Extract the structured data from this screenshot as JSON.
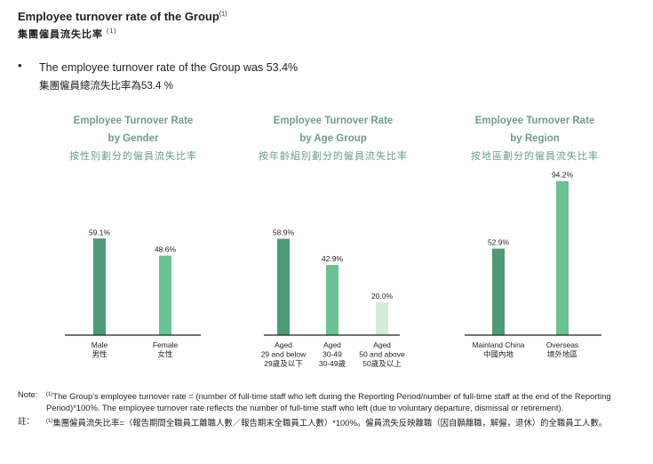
{
  "header": {
    "title_en": "Employee turnover rate of the Group",
    "title_zh": "集團僱員流失比率",
    "title_note": "(1)"
  },
  "bullet": {
    "symbol": "•",
    "text_en": "The employee turnover rate of the Group was 53.4%",
    "text_zh": "集團僱員總流失比率為53.4 %"
  },
  "colors": {
    "dark": "#4e9a76",
    "medium": "#6bc293",
    "light": "#d3ebdc",
    "title": "#6e9e86",
    "axis": "#231f20"
  },
  "chart_data": [
    {
      "type": "bar",
      "title_en_1": "Employee Turnover Rate",
      "title_en_2": "by Gender",
      "title_zh": "按性別劃分的僱員流失比率",
      "categories": [
        {
          "en": "Male",
          "zh": "男性"
        },
        {
          "en": "Female",
          "zh": "女性"
        }
      ],
      "values": [
        59.1,
        48.6
      ],
      "labels": [
        "59.1%",
        "48.6%"
      ],
      "bar_colors": [
        "#4e9a76",
        "#6bc293"
      ],
      "ylim": [
        0,
        100
      ]
    },
    {
      "type": "bar",
      "title_en_1": "Employee Turnover Rate",
      "title_en_2": "by Age Group",
      "title_zh": "按年齡組別劃分的僱員流失比率",
      "categories": [
        {
          "en": "Aged",
          "en2": "29 and below",
          "zh": "29歲及以下"
        },
        {
          "en": "Aged",
          "en2": "30-49",
          "zh": "30-49歲"
        },
        {
          "en": "Aged",
          "en2": "50 and above",
          "zh": "50歲及以上"
        }
      ],
      "values": [
        58.9,
        42.9,
        20.0
      ],
      "labels": [
        "58.9%",
        "42.9%",
        "20.0%"
      ],
      "bar_colors": [
        "#4e9a76",
        "#6bc293",
        "#d3ebdc"
      ],
      "ylim": [
        0,
        100
      ]
    },
    {
      "type": "bar",
      "title_en_1": "Employee Turnover Rate",
      "title_en_2": "by Region",
      "title_zh": "按地區劃分的僱員流失比率",
      "categories": [
        {
          "en": "Mainland China",
          "zh": "中國內地"
        },
        {
          "en": "Overseas",
          "zh": "境外地區"
        }
      ],
      "values": [
        52.9,
        94.2
      ],
      "labels": [
        "52.9%",
        "94.2%"
      ],
      "bar_colors": [
        "#4e9a76",
        "#6bc293"
      ],
      "ylim": [
        0,
        100
      ]
    }
  ],
  "notes": {
    "label_en": "Note:",
    "marker": "(1)",
    "text_en": "The Group’s employee turnover rate = (number of full-time staff who left during the Reporting Period/number of full-time staff at the end of the Reporting Period)*100%. The employee turnover rate reflects the number of full-time staff who left (due to voluntary departure, dismissal or retirement).",
    "label_zh": "註：",
    "text_zh": "集團僱員流失比率=（報告期間全職員工離職人數／報告期末全職員工人數）*100%。僱員流失反映離職（因自願離職，解僱，退休）的全職員工人數。"
  }
}
